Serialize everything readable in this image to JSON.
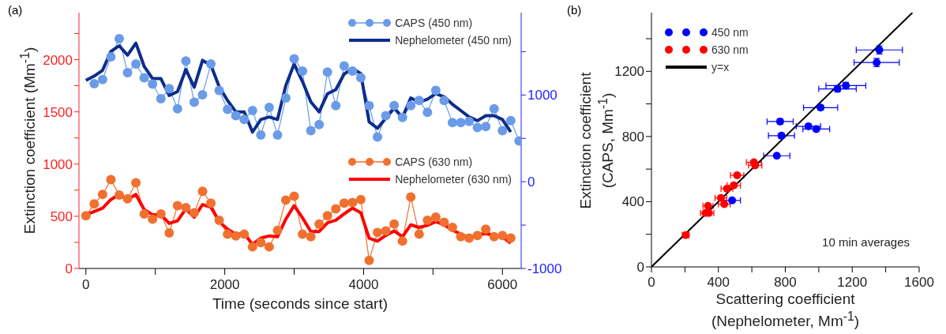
{
  "chart_data": [
    {
      "type": "line",
      "title": "(a)",
      "xlabel": "Time (seconds since start)",
      "ylabel": "Extinction coefficient (Mm$^{-1}$)",
      "xlim": [
        -100,
        6270
      ],
      "ylim": [
        0,
        2450
      ],
      "y2lim": [
        -1000,
        1950
      ],
      "xticks": [
        0,
        {
          "value": 1000,
          "label": null
        },
        2000,
        {
          "value": 3000,
          "label": null
        },
        4000,
        {
          "value": 5000,
          "label": null
        },
        6000
      ],
      "yticks": [
        0,
        {
          "value": 250,
          "label": null
        },
        500,
        {
          "value": 750,
          "label": null
        },
        1000,
        {
          "value": 1250,
          "label": null
        },
        1500,
        {
          "value": 1750,
          "label": null
        },
        2000,
        {
          "value": 2250,
          "label": null
        }
      ],
      "y2ticks": [
        -1000,
        {
          "value": -500,
          "label": null
        },
        0,
        {
          "value": 500,
          "label": null
        },
        1000,
        {
          "value": 1500,
          "label": null
        }
      ],
      "legend": "top right",
      "series": [
        {
          "name": "CAPS (450 nm)",
          "color": "#6a9be8",
          "axis": "y2",
          "marker": "circle",
          "x": [
            120,
            240,
            360,
            480,
            600,
            720,
            840,
            960,
            1080,
            1200,
            1320,
            1440,
            1560,
            1680,
            1800,
            1920,
            2040,
            2160,
            2280,
            2400,
            2520,
            2640,
            2760,
            2880,
            3000,
            3120,
            3240,
            3360,
            3480,
            3600,
            3720,
            3840,
            3960,
            4080,
            4200,
            4320,
            4440,
            4560,
            4680,
            4800,
            4920,
            5040,
            5160,
            5280,
            5400,
            5520,
            5640,
            5760,
            5880,
            6000,
            6120,
            6240
          ],
          "values": [
            1131,
            1178,
            1440,
            1650,
            1257,
            1358,
            1199,
            1126,
            957,
            1074,
            841,
            1393,
            917,
            1004,
            1358,
            1053,
            835,
            762,
            718,
            821,
            538,
            858,
            538,
            966,
            1417,
            1277,
            588,
            660,
            1265,
            878,
            1335,
            1277,
            1199,
            878,
            515,
            762,
            878,
            742,
            878,
            937,
            800,
            1053,
            937,
            683,
            683,
            695,
            625,
            637,
            841,
            588,
            704,
            471
          ]
        },
        {
          "name": "Nephelometer (450 nm)",
          "color": "#0d2d8c",
          "axis": "y2",
          "marker": "none",
          "x": [
            0,
            120,
            240,
            360,
            480,
            600,
            720,
            840,
            960,
            1080,
            1200,
            1320,
            1440,
            1560,
            1680,
            1800,
            1920,
            2040,
            2160,
            2280,
            2400,
            2520,
            2640,
            2760,
            2880,
            3000,
            3120,
            3240,
            3360,
            3480,
            3600,
            3720,
            3840,
            3960,
            4080,
            4200,
            4320,
            4440,
            4560,
            4680,
            4800,
            4920,
            5040,
            5160,
            5280,
            5400,
            5520,
            5640,
            5760,
            5880,
            6000,
            6120
          ],
          "values": [
            1170,
            1219,
            1285,
            1503,
            1568,
            1460,
            1598,
            1329,
            1189,
            1189,
            995,
            1039,
            1294,
            1091,
            1400,
            1344,
            1096,
            937,
            806,
            806,
            573,
            718,
            747,
            718,
            1111,
            1358,
            1155,
            922,
            806,
            1015,
            1062,
            1242,
            1306,
            1248,
            690,
            616,
            733,
            849,
            742,
            966,
            917,
            952,
            1015,
            980,
            893,
            821,
            747,
            704,
            762,
            762,
            718,
            573
          ]
        },
        {
          "name": "CAPS (630 nm)",
          "color": "#f07030",
          "marker": "circle",
          "x": [
            0,
            120,
            240,
            360,
            480,
            600,
            720,
            840,
            960,
            1080,
            1200,
            1320,
            1440,
            1560,
            1680,
            1800,
            1920,
            2040,
            2160,
            2280,
            2400,
            2520,
            2640,
            2760,
            2880,
            3000,
            3120,
            3240,
            3360,
            3480,
            3600,
            3720,
            3840,
            3960,
            4080,
            4200,
            4320,
            4440,
            4560,
            4680,
            4800,
            4920,
            5040,
            5160,
            5280,
            5400,
            5520,
            5640,
            5760,
            5880,
            6000,
            6120
          ],
          "values": [
            505,
            619,
            709,
            850,
            704,
            668,
            820,
            522,
            473,
            522,
            340,
            602,
            582,
            534,
            740,
            626,
            462,
            328,
            311,
            328,
            207,
            248,
            207,
            364,
            655,
            692,
            328,
            304,
            425,
            505,
            571,
            626,
            631,
            660,
            78,
            345,
            360,
            425,
            262,
            684,
            328,
            462,
            491,
            442,
            393,
            304,
            291,
            316,
            376,
            304,
            316,
            291
          ]
        },
        {
          "name": "Nephelometer (630 nm)",
          "color": "#ff0000",
          "marker": "none",
          "x": [
            0,
            120,
            240,
            360,
            480,
            600,
            720,
            840,
            960,
            1080,
            1200,
            1320,
            1440,
            1560,
            1680,
            1800,
            1920,
            2040,
            2160,
            2280,
            2400,
            2520,
            2640,
            2760,
            2880,
            3000,
            3120,
            3240,
            3360,
            3480,
            3600,
            3720,
            3840,
            3960,
            4080,
            4200,
            4320,
            4440,
            4560,
            4680,
            4800,
            4920,
            5040,
            5160,
            5280,
            5400,
            5520,
            5640,
            5760,
            5880,
            6000,
            6120
          ],
          "values": [
            515,
            546,
            578,
            660,
            709,
            660,
            709,
            563,
            515,
            515,
            432,
            456,
            571,
            491,
            612,
            587,
            449,
            376,
            328,
            335,
            231,
            291,
            311,
            304,
            473,
            602,
            485,
            354,
            354,
            437,
            462,
            522,
            578,
            534,
            291,
            262,
            316,
            360,
            304,
            418,
            393,
            413,
            449,
            418,
            369,
            328,
            296,
            320,
            335,
            316,
            304,
            243
          ]
        }
      ]
    },
    {
      "type": "scatter",
      "title": "(b)",
      "xlabel": "Scattering coefficient\n(Nephelometer, Mm$^{-1}$)",
      "ylabel": "Extinction coefficient\n(CAPS, Mm$^{-1}$)",
      "xlim": [
        0,
        1600
      ],
      "ylim": [
        0,
        1560
      ],
      "xticks": [
        0,
        {
          "value": 200,
          "label": null
        },
        400,
        {
          "value": 600,
          "label": null
        },
        800,
        {
          "value": 1000,
          "label": null
        },
        1200,
        {
          "value": 1400,
          "label": null
        },
        1600
      ],
      "yticks": [
        0,
        {
          "value": 200,
          "label": null
        },
        400,
        {
          "value": 600,
          "label": null
        },
        800,
        {
          "value": 1000,
          "label": null
        },
        1200,
        {
          "value": 1400,
          "label": null
        }
      ],
      "legend": "top left",
      "marker": "circle",
      "annotations": [
        "10 min averages"
      ],
      "series": [
        {
          "name": "450 nm",
          "color": "#0000ff",
          "x": [
            1362,
            1346,
            1162,
            1112,
            1011,
            769,
            777,
            938,
            985,
            749,
            482
          ],
          "values": [
            1331,
            1254,
            1112,
            1092,
            977,
            892,
            805,
            862,
            846,
            682,
            408
          ],
          "xerrors": [
            138,
            135,
            119,
            112,
            102,
            78,
            78,
            73,
            80,
            78,
            50
          ],
          "errors": [
            25,
            25,
            20,
            15,
            15,
            15,
            15,
            15,
            15,
            10,
            10
          ]
        },
        {
          "name": "630 nm",
          "color": "#ff0000",
          "x": [
            205,
            323,
            343,
            338,
            415,
            435,
            451,
            492,
            512,
            612,
            620
          ],
          "values": [
            195,
            331,
            331,
            374,
            423,
            385,
            480,
            500,
            562,
            642,
            623
          ],
          "xerrors": [
            20,
            30,
            30,
            30,
            35,
            35,
            35,
            40,
            40,
            45,
            40
          ]
        },
        {
          "name": "y=x",
          "type": "line",
          "color": "#000000",
          "marker": "none",
          "x": [
            0,
            1560
          ],
          "values": [
            0,
            1560
          ]
        }
      ]
    }
  ]
}
